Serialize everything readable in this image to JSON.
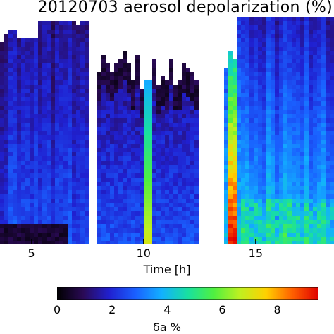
{
  "chart_data": {
    "type": "heatmap",
    "title": "20120703 aerosol depolarization (%)",
    "xlabel": "Time [h]",
    "x_ticks": [
      5,
      10,
      15
    ],
    "xlim": [
      3.6,
      18.5
    ],
    "colorbar": {
      "label": "δa %",
      "ticks": [
        0,
        2,
        4,
        6,
        8
      ],
      "range": [
        0,
        9.5
      ],
      "colormap": [
        "#000000",
        "#2a0a55",
        "#2020d0",
        "#1a60ff",
        "#12b0ff",
        "#18e0a0",
        "#50f040",
        "#c0f020",
        "#ffd000",
        "#ff6000",
        "#e00000"
      ]
    },
    "gaps_hours": [
      [
        7.5,
        7.85
      ],
      [
        12.55,
        13.6
      ]
    ],
    "background_color": "#ffffff"
  }
}
